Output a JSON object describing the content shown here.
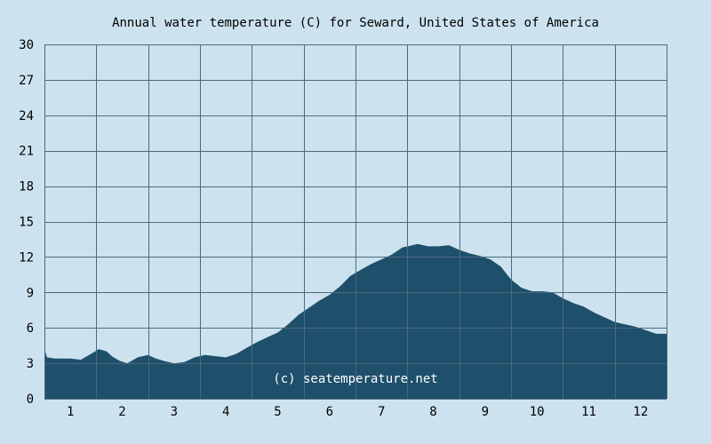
{
  "chart_data": {
    "type": "area",
    "title": "Annual water temperature (C) for Seward, United States of America",
    "xlabel": "",
    "ylabel": "",
    "watermark": "(c) seatemperature.net",
    "x_tick_labels": [
      "1",
      "2",
      "3",
      "4",
      "5",
      "6",
      "7",
      "8",
      "9",
      "10",
      "11",
      "12"
    ],
    "y_ticks": [
      0,
      3,
      6,
      9,
      12,
      15,
      18,
      21,
      24,
      27,
      30
    ],
    "ylim": [
      0,
      30
    ],
    "xlim": [
      0.5,
      12.5
    ],
    "grid": true,
    "colors": {
      "background": "#cce3ef",
      "fill": "#1e4f6b",
      "grid": "#4a6a80",
      "border": "#4a6a80",
      "text": "#000000",
      "watermark": "#ffffff"
    },
    "series": [
      {
        "x": [
          0.5,
          0.55,
          0.7,
          1.0,
          1.2,
          1.4,
          1.55,
          1.7,
          1.8,
          1.95,
          2.1,
          2.3,
          2.5,
          2.65,
          2.8,
          3.0,
          3.2,
          3.4,
          3.6,
          3.8,
          4.0,
          4.2,
          4.4,
          4.6,
          4.8,
          5.0,
          5.2,
          5.4,
          5.6,
          5.8,
          6.0,
          6.2,
          6.4,
          6.6,
          6.8,
          7.0,
          7.2,
          7.4,
          7.6,
          7.7,
          7.9,
          8.1,
          8.3,
          8.5,
          8.7,
          8.9,
          9.1,
          9.3,
          9.5,
          9.7,
          9.9,
          10.1,
          10.3,
          10.5,
          10.7,
          10.9,
          11.1,
          11.3,
          11.5,
          11.7,
          11.9,
          12.1,
          12.3,
          12.5
        ],
        "y": [
          4.2,
          3.5,
          3.4,
          3.4,
          3.3,
          3.8,
          4.2,
          4.0,
          3.6,
          3.2,
          3.0,
          3.5,
          3.7,
          3.4,
          3.2,
          3.0,
          3.1,
          3.5,
          3.7,
          3.6,
          3.5,
          3.8,
          4.3,
          4.8,
          5.2,
          5.6,
          6.3,
          7.1,
          7.7,
          8.3,
          8.8,
          9.5,
          10.4,
          10.9,
          11.4,
          11.8,
          12.2,
          12.8,
          13.0,
          13.1,
          12.9,
          12.9,
          13.0,
          12.6,
          12.3,
          12.1,
          11.8,
          11.2,
          10.1,
          9.4,
          9.1,
          9.1,
          9.0,
          8.5,
          8.1,
          7.8,
          7.3,
          6.9,
          6.5,
          6.3,
          6.1,
          5.8,
          5.5,
          5.5
        ]
      }
    ]
  }
}
